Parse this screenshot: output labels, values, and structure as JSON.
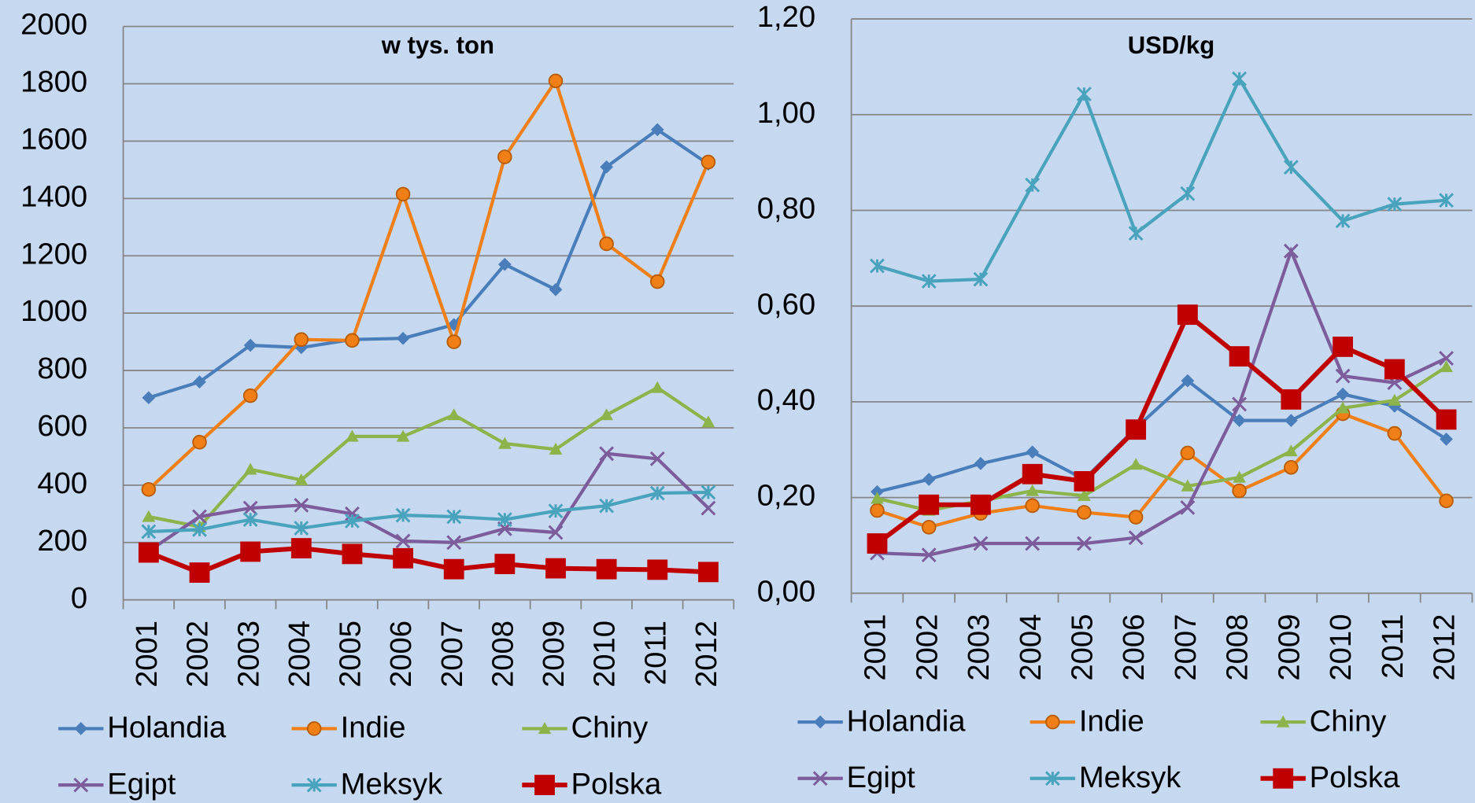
{
  "chart_data": [
    {
      "type": "line",
      "title": "w tys. ton",
      "categories": [
        "2001",
        "2002",
        "2003",
        "2004",
        "2005",
        "2006",
        "2007",
        "2008",
        "2009",
        "2010",
        "2011",
        "2012"
      ],
      "ylim": [
        0,
        2000
      ],
      "yticks": [
        0,
        200,
        400,
        600,
        800,
        1000,
        1200,
        1400,
        1600,
        1800,
        2000
      ],
      "grid": true,
      "series": [
        {
          "name": "Holandia",
          "color": "#4a7ebb",
          "marker": "diamond",
          "values": [
            705,
            760,
            888,
            880,
            908,
            912,
            960,
            1170,
            1082,
            1510,
            1640,
            1520
          ]
        },
        {
          "name": "Indie",
          "color": "#f07f18",
          "marker": "circle",
          "values": [
            385,
            550,
            712,
            908,
            905,
            1415,
            900,
            1545,
            1810,
            1242,
            1110,
            1527
          ]
        },
        {
          "name": "Chiny",
          "color": "#8db44a",
          "marker": "triangle",
          "values": [
            290,
            255,
            455,
            418,
            570,
            570,
            645,
            545,
            525,
            645,
            740,
            620
          ]
        },
        {
          "name": "Egipt",
          "color": "#7d5c9b",
          "marker": "x",
          "values": [
            170,
            290,
            320,
            330,
            300,
            205,
            200,
            248,
            235,
            510,
            492,
            320
          ]
        },
        {
          "name": "Meksyk",
          "color": "#4aa3bc",
          "marker": "star",
          "values": [
            238,
            245,
            280,
            250,
            275,
            295,
            290,
            280,
            310,
            328,
            372,
            375
          ]
        },
        {
          "name": "Polska",
          "color": "#c00000",
          "marker": "square",
          "values": [
            165,
            95,
            168,
            180,
            160,
            145,
            107,
            125,
            110,
            107,
            105,
            97
          ]
        }
      ]
    },
    {
      "type": "line",
      "title": "USD/kg",
      "categories": [
        "2001",
        "2002",
        "2003",
        "2004",
        "2005",
        "2006",
        "2007",
        "2008",
        "2009",
        "2010",
        "2011",
        "2012"
      ],
      "ylim": [
        0,
        1.2
      ],
      "yticks": [
        {
          "value": 0,
          "label": "0,00"
        },
        {
          "value": 0.2,
          "label": "0,20"
        },
        {
          "value": 0.4,
          "label": "0,40"
        },
        {
          "value": 0.6,
          "label": "0,60"
        },
        {
          "value": 0.8,
          "label": "0,80"
        },
        {
          "value": 1.0,
          "label": "1,00"
        },
        {
          "value": 1.2,
          "label": "1,20"
        }
      ],
      "grid": true,
      "series": [
        {
          "name": "Holandia",
          "color": "#4a7ebb",
          "marker": "diamond",
          "values": [
            0.212,
            0.238,
            0.271,
            0.295,
            0.238,
            0.345,
            0.444,
            0.361,
            0.361,
            0.416,
            0.391,
            0.322
          ]
        },
        {
          "name": "Indie",
          "color": "#f07f18",
          "marker": "circle",
          "values": [
            0.173,
            0.138,
            0.167,
            0.183,
            0.169,
            0.159,
            0.293,
            0.214,
            0.263,
            0.375,
            0.334,
            0.193
          ]
        },
        {
          "name": "Chiny",
          "color": "#8db44a",
          "marker": "triangle",
          "values": [
            0.198,
            0.173,
            0.193,
            0.214,
            0.204,
            0.269,
            0.224,
            0.242,
            0.297,
            0.387,
            0.403,
            0.473
          ]
        },
        {
          "name": "Egipt",
          "color": "#7d5c9b",
          "marker": "x",
          "values": [
            0.084,
            0.08,
            0.104,
            0.104,
            0.104,
            0.116,
            0.179,
            0.395,
            0.715,
            0.454,
            0.44,
            0.491
          ]
        },
        {
          "name": "Meksyk",
          "color": "#4aa3bc",
          "marker": "star",
          "values": [
            0.684,
            0.652,
            0.656,
            0.853,
            1.043,
            0.752,
            0.835,
            1.075,
            0.89,
            0.778,
            0.813,
            0.821
          ]
        },
        {
          "name": "Polska",
          "color": "#c00000",
          "marker": "square",
          "values": [
            0.104,
            0.185,
            0.185,
            0.249,
            0.234,
            0.342,
            0.582,
            0.495,
            0.405,
            0.515,
            0.468,
            0.363
          ]
        }
      ]
    }
  ]
}
